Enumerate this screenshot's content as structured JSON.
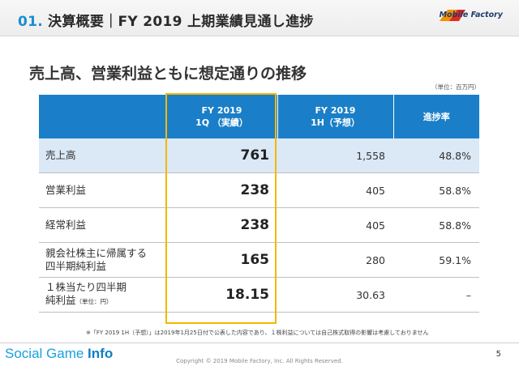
{
  "header": {
    "num": "01.",
    "title": "決算概要｜FY 2019 上期業績見通し進捗",
    "logo_text": "Mobile Factory"
  },
  "subtitle": "売上高、営業利益ともに想定通りの推移",
  "unit": "（単位：百万円）",
  "table": {
    "headers": [
      {
        "line1": "",
        "line2": ""
      },
      {
        "line1": "FY 2019",
        "line2": "1Q （実績）"
      },
      {
        "line1": "FY 2019",
        "line2": "1H（予想）"
      },
      {
        "line1": "進捗率",
        "line2": ""
      }
    ],
    "rows": [
      {
        "label1": "売上高",
        "label2": "",
        "q1": "761",
        "h1": "1,558",
        "progress": "48.8%"
      },
      {
        "label1": "営業利益",
        "label2": "",
        "q1": "238",
        "h1": "405",
        "progress": "58.8%"
      },
      {
        "label1": "経常利益",
        "label2": "",
        "q1": "238",
        "h1": "405",
        "progress": "58.8%"
      },
      {
        "label1": "親会社株主に帰属する",
        "label2": "四半期純利益",
        "q1": "165",
        "h1": "280",
        "progress": "59.1%"
      },
      {
        "label1": "１株当たり四半期",
        "label2": "純利益",
        "label2_small": "（単位：円）",
        "q1": "18.15",
        "h1": "30.63",
        "progress": "–"
      }
    ]
  },
  "footnote": "※「FY 2019 1H（予想）」は2019年1月25日付で公表した内容であり、１株利益については自己株式取得の影響は考慮しておりません",
  "footer": {
    "brand_light": "Social Game ",
    "brand_bold": "Info",
    "copyright": "Copyright © 2019 Mobile Factory, Inc. All Rights Reserved.",
    "page": "5"
  },
  "colors": {
    "accent": "#1a8fd0",
    "table_header": "#1a7fc8",
    "highlight": "#f3b800",
    "row_highlight": "#dbe8f6"
  }
}
